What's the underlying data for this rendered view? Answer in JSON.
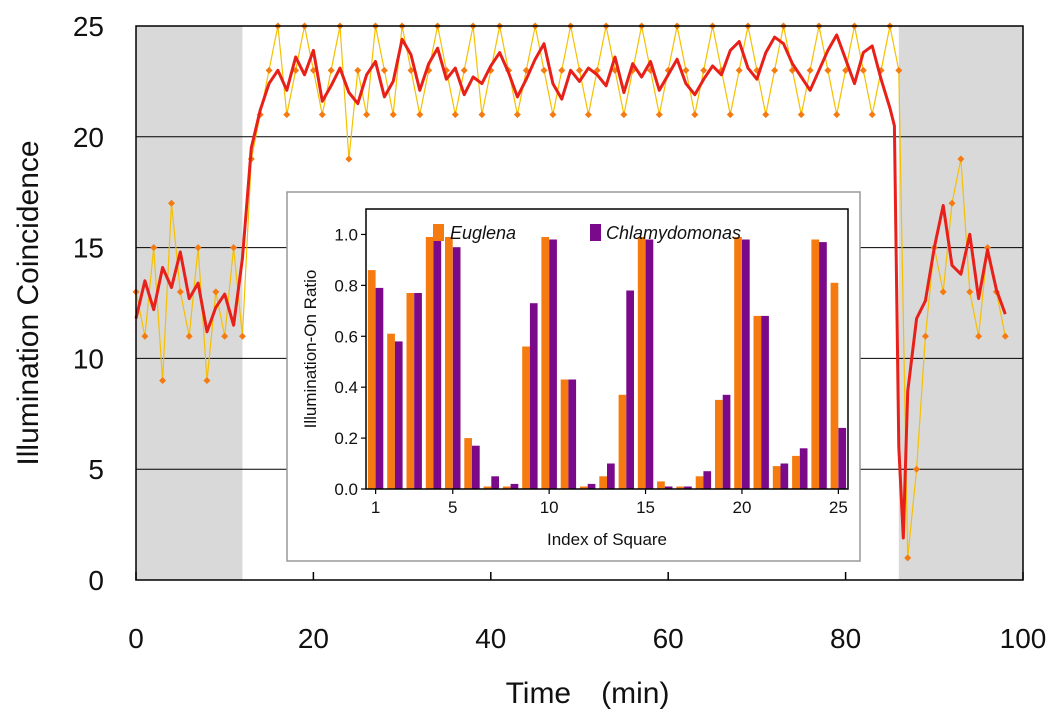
{
  "chart_data": [
    {
      "type": "line",
      "xlabel": "Time　(min)",
      "ylabel": "Illumination Coincidence",
      "xlim": [
        0,
        100
      ],
      "ylim": [
        0,
        25
      ],
      "xticks": [
        "0",
        "20",
        "40",
        "60",
        "80",
        "100"
      ],
      "yticks": [
        "0",
        "5",
        "10",
        "15",
        "20",
        "25"
      ],
      "grid": "horizontal",
      "shaded_regions": [
        [
          0,
          12
        ],
        [
          86,
          100
        ]
      ],
      "shade_color": "#d9d9d9",
      "series": [
        {
          "role": "raw",
          "color": "#f5c000",
          "marker_color": "#f57a10",
          "x": [
            0,
            1,
            2,
            3,
            4,
            5,
            6,
            7,
            8,
            9,
            10,
            11,
            12,
            13,
            14,
            15,
            16,
            17,
            18,
            19,
            20,
            21,
            22,
            23,
            24,
            25,
            26,
            27,
            28,
            29,
            30,
            31,
            32,
            33,
            34,
            35,
            36,
            37,
            38,
            39,
            40,
            41,
            42,
            43,
            44,
            45,
            46,
            47,
            48,
            49,
            50,
            51,
            52,
            53,
            54,
            55,
            56,
            57,
            58,
            59,
            60,
            61,
            62,
            63,
            64,
            65,
            66,
            67,
            68,
            69,
            70,
            71,
            72,
            73,
            74,
            75,
            76,
            77,
            78,
            79,
            80,
            81,
            82,
            83,
            84,
            85,
            86,
            87,
            88,
            89,
            90,
            91,
            92,
            93,
            94,
            95,
            96,
            97,
            98
          ],
          "y": [
            13,
            11,
            15,
            9,
            17,
            13,
            11,
            15,
            9,
            13,
            11,
            15,
            11,
            19,
            21,
            23,
            25,
            21,
            23,
            25,
            23,
            21,
            23,
            25,
            19,
            23,
            21,
            25,
            23,
            21,
            25,
            23,
            21,
            23,
            25,
            23,
            21,
            23,
            25,
            21,
            23,
            25,
            23,
            21,
            23,
            25,
            23,
            21,
            23,
            25,
            23,
            21,
            23,
            25,
            23,
            21,
            23,
            25,
            23,
            21,
            23,
            25,
            23,
            21,
            23,
            25,
            23,
            21,
            23,
            25,
            23,
            21,
            23,
            25,
            23,
            21,
            23,
            25,
            23,
            21,
            23,
            25,
            23,
            21,
            23,
            25,
            23,
            1,
            5,
            11,
            15,
            13,
            17,
            19,
            13,
            11,
            15,
            13,
            11
          ]
        },
        {
          "role": "smoothed",
          "color": "#e8201a",
          "x": [
            0,
            1,
            2,
            3,
            4,
            5,
            6,
            7,
            8,
            9,
            10,
            11,
            12,
            13,
            14,
            15,
            16,
            17,
            18,
            19,
            20,
            21,
            22,
            23,
            24,
            25,
            26,
            27,
            28,
            29,
            30,
            31,
            32,
            33,
            34,
            35,
            36,
            37,
            38,
            39,
            40,
            41,
            42,
            43,
            44,
            45,
            46,
            47,
            48,
            49,
            50,
            51,
            52,
            53,
            54,
            55,
            56,
            57,
            58,
            59,
            60,
            61,
            62,
            63,
            64,
            65,
            66,
            67,
            68,
            69,
            70,
            71,
            72,
            73,
            74,
            75,
            76,
            77,
            78,
            79,
            80,
            81,
            82,
            83,
            84,
            85,
            85.5,
            86,
            86.5,
            87,
            88,
            89,
            90,
            91,
            92,
            93,
            94,
            95,
            96,
            97,
            98
          ],
          "y": [
            11.8,
            13.5,
            12.2,
            14.1,
            13.2,
            14.8,
            12.7,
            13.4,
            11.2,
            12.3,
            12.9,
            11.5,
            14.5,
            19.5,
            21.2,
            22.4,
            23.0,
            22.1,
            23.6,
            22.8,
            23.9,
            21.6,
            22.3,
            23.1,
            22.0,
            21.5,
            22.8,
            23.4,
            21.8,
            22.5,
            24.4,
            23.7,
            22.1,
            23.3,
            24.0,
            22.6,
            23.1,
            21.9,
            22.7,
            22.4,
            23.2,
            23.8,
            22.9,
            21.8,
            22.6,
            23.5,
            24.2,
            22.4,
            21.7,
            23.0,
            22.5,
            23.1,
            22.8,
            22.3,
            23.6,
            22.0,
            23.3,
            22.7,
            23.4,
            22.1,
            22.8,
            23.5,
            22.4,
            21.9,
            22.6,
            23.2,
            22.8,
            23.9,
            24.3,
            23.1,
            22.6,
            23.8,
            24.5,
            24.2,
            23.3,
            22.7,
            22.1,
            23.0,
            23.9,
            24.6,
            23.5,
            22.4,
            23.8,
            24.1,
            22.6,
            21.3,
            20.5,
            6.0,
            1.9,
            8.5,
            11.8,
            12.6,
            15.0,
            16.9,
            14.2,
            13.8,
            15.6,
            12.7,
            14.9,
            13.1,
            12.0
          ]
        }
      ]
    },
    {
      "type": "bar",
      "xlabel": "Index of Square",
      "ylabel": "Illumination-On Ratio",
      "ylim": [
        0,
        1.1
      ],
      "categories": [
        1,
        2,
        3,
        4,
        5,
        6,
        7,
        8,
        9,
        10,
        11,
        12,
        13,
        14,
        15,
        16,
        17,
        18,
        19,
        20,
        21,
        22,
        23,
        24,
        25
      ],
      "xticks": [
        "1",
        "5",
        "10",
        "15",
        "20",
        "25"
      ],
      "yticks": [
        "0.0",
        "0.2",
        "0.4",
        "0.6",
        "0.8",
        "1.0"
      ],
      "legend_position": "top",
      "series": [
        {
          "name": "Euglena",
          "color": "#f57a10",
          "values": [
            0.86,
            0.61,
            0.77,
            0.99,
            0.99,
            0.2,
            0.01,
            0.01,
            0.56,
            0.99,
            0.43,
            0.01,
            0.05,
            0.37,
            0.99,
            0.03,
            0.01,
            0.05,
            0.35,
            0.99,
            0.68,
            0.09,
            0.13,
            0.98,
            0.81
          ]
        },
        {
          "name": "Chlamydomonas",
          "color": "#7b0a8a",
          "values": [
            0.79,
            0.58,
            0.77,
            0.98,
            0.95,
            0.17,
            0.05,
            0.02,
            0.73,
            0.98,
            0.43,
            0.02,
            0.1,
            0.78,
            0.98,
            0.01,
            0.01,
            0.07,
            0.37,
            0.98,
            0.68,
            0.1,
            0.16,
            0.97,
            0.24
          ]
        }
      ]
    }
  ]
}
